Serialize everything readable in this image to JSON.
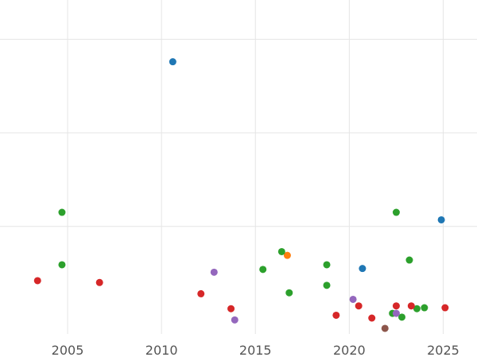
{
  "chart_data": {
    "type": "scatter",
    "title": "",
    "xlabel": "",
    "ylabel": "",
    "xlim": [
      2001.4,
      2026.8
    ],
    "ylim": [
      -0.15,
      3.42
    ],
    "grid": true,
    "y_tick_labels_shown": false,
    "x_ticks": [
      {
        "value": 2005,
        "label": "2005"
      },
      {
        "value": 2010,
        "label": "2010"
      },
      {
        "value": 2015,
        "label": "2015"
      },
      {
        "value": 2020,
        "label": "2020"
      },
      {
        "value": 2025,
        "label": "2025"
      }
    ],
    "y_ticks": [
      1,
      2,
      3
    ],
    "colors": {
      "blue": "#1f77b4",
      "orange": "#ff7f0e",
      "green": "#2ca02c",
      "red": "#d62728",
      "purple": "#9467bd",
      "brown": "#8c564b",
      "grid": "#e5e5e5",
      "tick_label": "#555555"
    },
    "series": [
      {
        "color": "#1f77b4",
        "points": [
          {
            "x": 2010.6,
            "y": 2.76
          },
          {
            "x": 2020.7,
            "y": 0.55
          },
          {
            "x": 2024.9,
            "y": 1.07
          }
        ]
      },
      {
        "color": "#ff7f0e",
        "points": [
          {
            "x": 2016.7,
            "y": 0.69
          }
        ]
      },
      {
        "color": "#2ca02c",
        "points": [
          {
            "x": 2004.7,
            "y": 1.15
          },
          {
            "x": 2004.7,
            "y": 0.59
          },
          {
            "x": 2015.4,
            "y": 0.54
          },
          {
            "x": 2016.4,
            "y": 0.73
          },
          {
            "x": 2016.8,
            "y": 0.29
          },
          {
            "x": 2018.8,
            "y": 0.59
          },
          {
            "x": 2018.8,
            "y": 0.37
          },
          {
            "x": 2022.3,
            "y": 0.07
          },
          {
            "x": 2022.8,
            "y": 0.03
          },
          {
            "x": 2023.2,
            "y": 0.64
          },
          {
            "x": 2023.6,
            "y": 0.12
          },
          {
            "x": 2024.0,
            "y": 0.13
          },
          {
            "x": 2022.5,
            "y": 1.15
          }
        ]
      },
      {
        "color": "#d62728",
        "points": [
          {
            "x": 2003.4,
            "y": 0.42
          },
          {
            "x": 2006.7,
            "y": 0.4
          },
          {
            "x": 2012.1,
            "y": 0.28
          },
          {
            "x": 2013.7,
            "y": 0.12
          },
          {
            "x": 2019.3,
            "y": 0.05
          },
          {
            "x": 2020.5,
            "y": 0.15
          },
          {
            "x": 2021.2,
            "y": 0.02
          },
          {
            "x": 2022.5,
            "y": 0.15
          },
          {
            "x": 2023.3,
            "y": 0.15
          },
          {
            "x": 2025.1,
            "y": 0.13
          }
        ]
      },
      {
        "color": "#9467bd",
        "points": [
          {
            "x": 2012.8,
            "y": 0.51
          },
          {
            "x": 2013.9,
            "y": 0.0
          },
          {
            "x": 2020.2,
            "y": 0.22
          },
          {
            "x": 2022.5,
            "y": 0.07
          }
        ]
      },
      {
        "color": "#8c564b",
        "points": [
          {
            "x": 2021.9,
            "y": -0.09
          }
        ]
      }
    ]
  }
}
